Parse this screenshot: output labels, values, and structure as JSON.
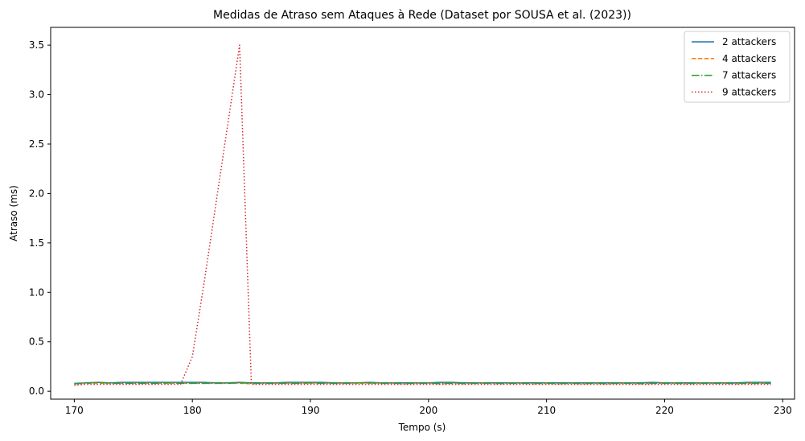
{
  "chart_data": {
    "type": "line",
    "title": "Medidas de Atraso sem Ataques à Rede (Dataset por SOUSA et al. (2023))",
    "xlabel": "Tempo (s)",
    "ylabel": "Atraso (ms)",
    "xlim": [
      168,
      231
    ],
    "ylim": [
      -0.08,
      3.68
    ],
    "xticks": [
      170,
      180,
      190,
      200,
      210,
      220,
      230
    ],
    "yticks": [
      0.0,
      0.5,
      1.0,
      1.5,
      2.0,
      2.5,
      3.0,
      3.5
    ],
    "ytick_labels": [
      "0.0",
      "0.5",
      "1.0",
      "1.5",
      "2.0",
      "2.5",
      "3.0",
      "3.5"
    ],
    "grid": false,
    "legend_position": "top-right",
    "x": [
      170,
      171,
      172,
      173,
      174,
      175,
      176,
      177,
      178,
      179,
      180,
      181,
      182,
      183,
      184,
      185,
      186,
      187,
      188,
      189,
      190,
      191,
      192,
      193,
      194,
      195,
      196,
      197,
      198,
      199,
      200,
      201,
      202,
      203,
      204,
      205,
      206,
      207,
      208,
      209,
      210,
      211,
      212,
      213,
      214,
      215,
      216,
      217,
      218,
      219,
      220,
      221,
      222,
      223,
      224,
      225,
      226,
      227,
      228,
      229
    ],
    "series": [
      {
        "name": "2 attackers",
        "color": "#1f77b4",
        "dash": "solid",
        "values": [
          0.08,
          0.085,
          0.09,
          0.085,
          0.09,
          0.09,
          0.09,
          0.09,
          0.09,
          0.09,
          0.09,
          0.09,
          0.085,
          0.085,
          0.09,
          0.085,
          0.085,
          0.085,
          0.09,
          0.09,
          0.09,
          0.09,
          0.085,
          0.085,
          0.085,
          0.09,
          0.085,
          0.085,
          0.085,
          0.085,
          0.085,
          0.09,
          0.09,
          0.085,
          0.085,
          0.085,
          0.085,
          0.085,
          0.085,
          0.085,
          0.085,
          0.085,
          0.085,
          0.085,
          0.085,
          0.085,
          0.085,
          0.085,
          0.085,
          0.09,
          0.085,
          0.085,
          0.085,
          0.085,
          0.085,
          0.085,
          0.085,
          0.09,
          0.09,
          0.09
        ]
      },
      {
        "name": "4 attackers",
        "color": "#ff7f0e",
        "dash": "dashed",
        "values": [
          0.075,
          0.08,
          0.08,
          0.08,
          0.08,
          0.08,
          0.08,
          0.08,
          0.08,
          0.08,
          0.08,
          0.08,
          0.08,
          0.08,
          0.08,
          0.075,
          0.08,
          0.08,
          0.08,
          0.08,
          0.08,
          0.08,
          0.08,
          0.08,
          0.08,
          0.08,
          0.08,
          0.08,
          0.075,
          0.08,
          0.08,
          0.075,
          0.08,
          0.075,
          0.08,
          0.08,
          0.075,
          0.08,
          0.08,
          0.075,
          0.08,
          0.075,
          0.08,
          0.075,
          0.08,
          0.075,
          0.08,
          0.08,
          0.075,
          0.08,
          0.08,
          0.08,
          0.075,
          0.08,
          0.08,
          0.08,
          0.075,
          0.08,
          0.08,
          0.08
        ]
      },
      {
        "name": "7 attackers",
        "color": "#2ca02c",
        "dash": "dashdot",
        "values": [
          0.075,
          0.08,
          0.09,
          0.08,
          0.08,
          0.08,
          0.08,
          0.08,
          0.085,
          0.08,
          0.08,
          0.08,
          0.08,
          0.08,
          0.085,
          0.08,
          0.08,
          0.08,
          0.08,
          0.08,
          0.085,
          0.08,
          0.08,
          0.08,
          0.085,
          0.085,
          0.08,
          0.08,
          0.08,
          0.08,
          0.08,
          0.08,
          0.08,
          0.08,
          0.08,
          0.08,
          0.08,
          0.08,
          0.08,
          0.08,
          0.08,
          0.08,
          0.08,
          0.08,
          0.08,
          0.08,
          0.08,
          0.08,
          0.08,
          0.08,
          0.08,
          0.08,
          0.08,
          0.08,
          0.08,
          0.08,
          0.08,
          0.08,
          0.08,
          0.08
        ]
      },
      {
        "name": "9 attackers",
        "color": "#d62728",
        "dash": "dotted",
        "values": [
          0.06,
          0.07,
          0.07,
          0.07,
          0.07,
          0.07,
          0.07,
          0.07,
          0.07,
          0.07,
          0.35,
          1.1,
          1.9,
          2.7,
          3.5,
          0.07,
          0.07,
          0.07,
          0.07,
          0.07,
          0.07,
          0.07,
          0.07,
          0.07,
          0.07,
          0.07,
          0.07,
          0.07,
          0.07,
          0.07,
          0.07,
          0.07,
          0.07,
          0.07,
          0.07,
          0.07,
          0.07,
          0.07,
          0.07,
          0.07,
          0.07,
          0.07,
          0.07,
          0.07,
          0.07,
          0.07,
          0.07,
          0.07,
          0.07,
          0.07,
          0.07,
          0.07,
          0.07,
          0.07,
          0.07,
          0.07,
          0.07,
          0.07,
          0.07,
          0.07
        ]
      }
    ]
  }
}
